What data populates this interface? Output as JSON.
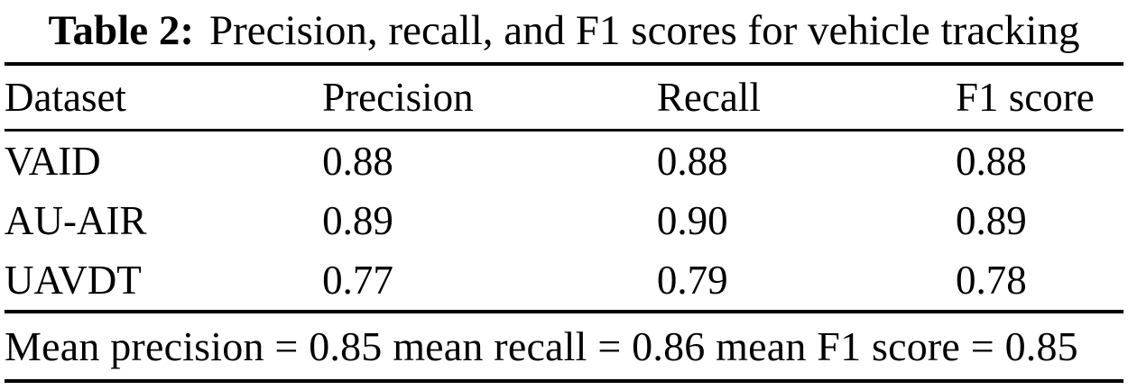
{
  "caption": {
    "label": "Table 2:",
    "text": "Precision, recall, and F1 scores for vehicle tracking"
  },
  "table": {
    "columns": [
      "Dataset",
      "Precision",
      "Recall",
      "F1 score"
    ],
    "rows": [
      {
        "dataset": "VAID",
        "precision": "0.88",
        "recall": "0.88",
        "f1": "0.88"
      },
      {
        "dataset": "AU-AIR",
        "precision": "0.89",
        "recall": "0.90",
        "f1": "0.89"
      },
      {
        "dataset": "UAVDT",
        "precision": "0.77",
        "recall": "0.79",
        "f1": "0.78"
      }
    ],
    "footer": "Mean precision = 0.85 mean recall = 0.86 mean F1 score = 0.85"
  },
  "chart_data": {
    "type": "table",
    "title": "Table 2: Precision, recall, and F1 scores for vehicle tracking",
    "categories": [
      "VAID",
      "AU-AIR",
      "UAVDT"
    ],
    "series": [
      {
        "name": "Precision",
        "values": [
          0.88,
          0.89,
          0.77
        ]
      },
      {
        "name": "Recall",
        "values": [
          0.88,
          0.9,
          0.79
        ]
      },
      {
        "name": "F1 score",
        "values": [
          0.88,
          0.89,
          0.78
        ]
      }
    ],
    "summary": {
      "mean_precision": 0.85,
      "mean_recall": 0.86,
      "mean_f1_score": 0.85
    }
  },
  "colors": {
    "text": "#000000",
    "background": "#ffffff",
    "rule": "#000000"
  }
}
